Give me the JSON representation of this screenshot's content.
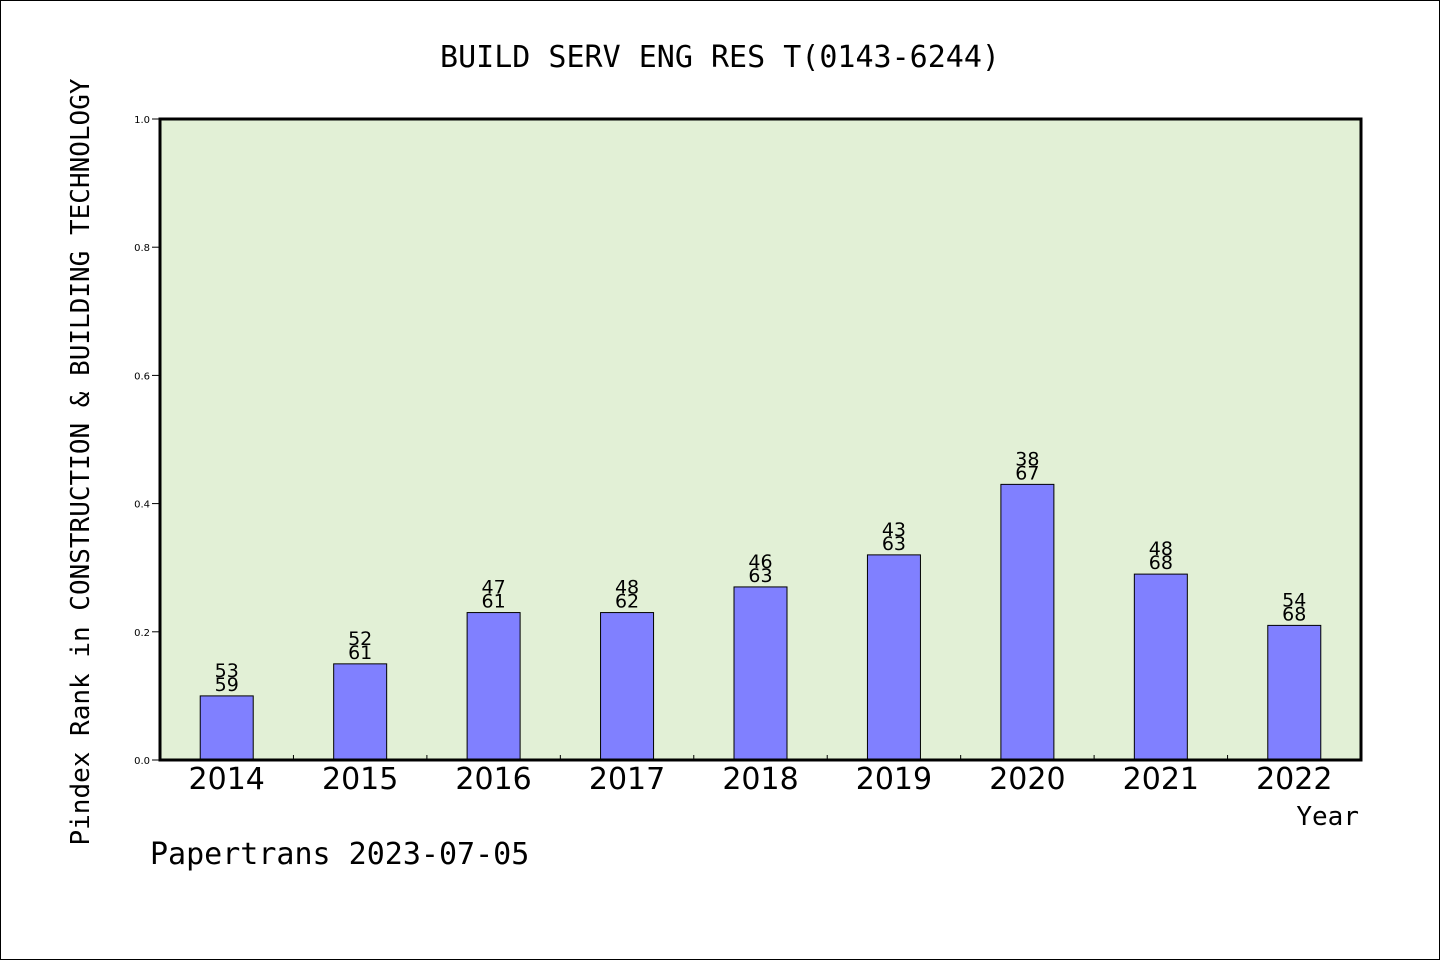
{
  "chart_data": {
    "type": "bar",
    "title": "BUILD SERV ENG RES T(0143-6244)",
    "xlabel": "Year",
    "ylabel": "Pindex Rank in CONSTRUCTION & BUILDING TECHNOLOGY",
    "footer": "Papertrans 2023-07-05",
    "ylim": [
      0,
      1.0
    ],
    "yticks": [
      "0.0",
      "0.2",
      "0.4",
      "0.6",
      "0.8",
      "1.0"
    ],
    "categories": [
      "2014",
      "2015",
      "2016",
      "2017",
      "2018",
      "2019",
      "2020",
      "2021",
      "2022"
    ],
    "values": [
      0.1,
      0.15,
      0.23,
      0.23,
      0.27,
      0.32,
      0.43,
      0.29,
      0.21
    ],
    "label_top": [
      "53",
      "52",
      "47",
      "48",
      "46",
      "43",
      "38",
      "48",
      "54"
    ],
    "label_bottom": [
      "59",
      "61",
      "61",
      "62",
      "63",
      "63",
      "67",
      "68",
      "68"
    ],
    "grid": false,
    "colors": {
      "bar": "#8080ff",
      "plot_background": "#e2f0d6",
      "axis": "#000000"
    }
  }
}
